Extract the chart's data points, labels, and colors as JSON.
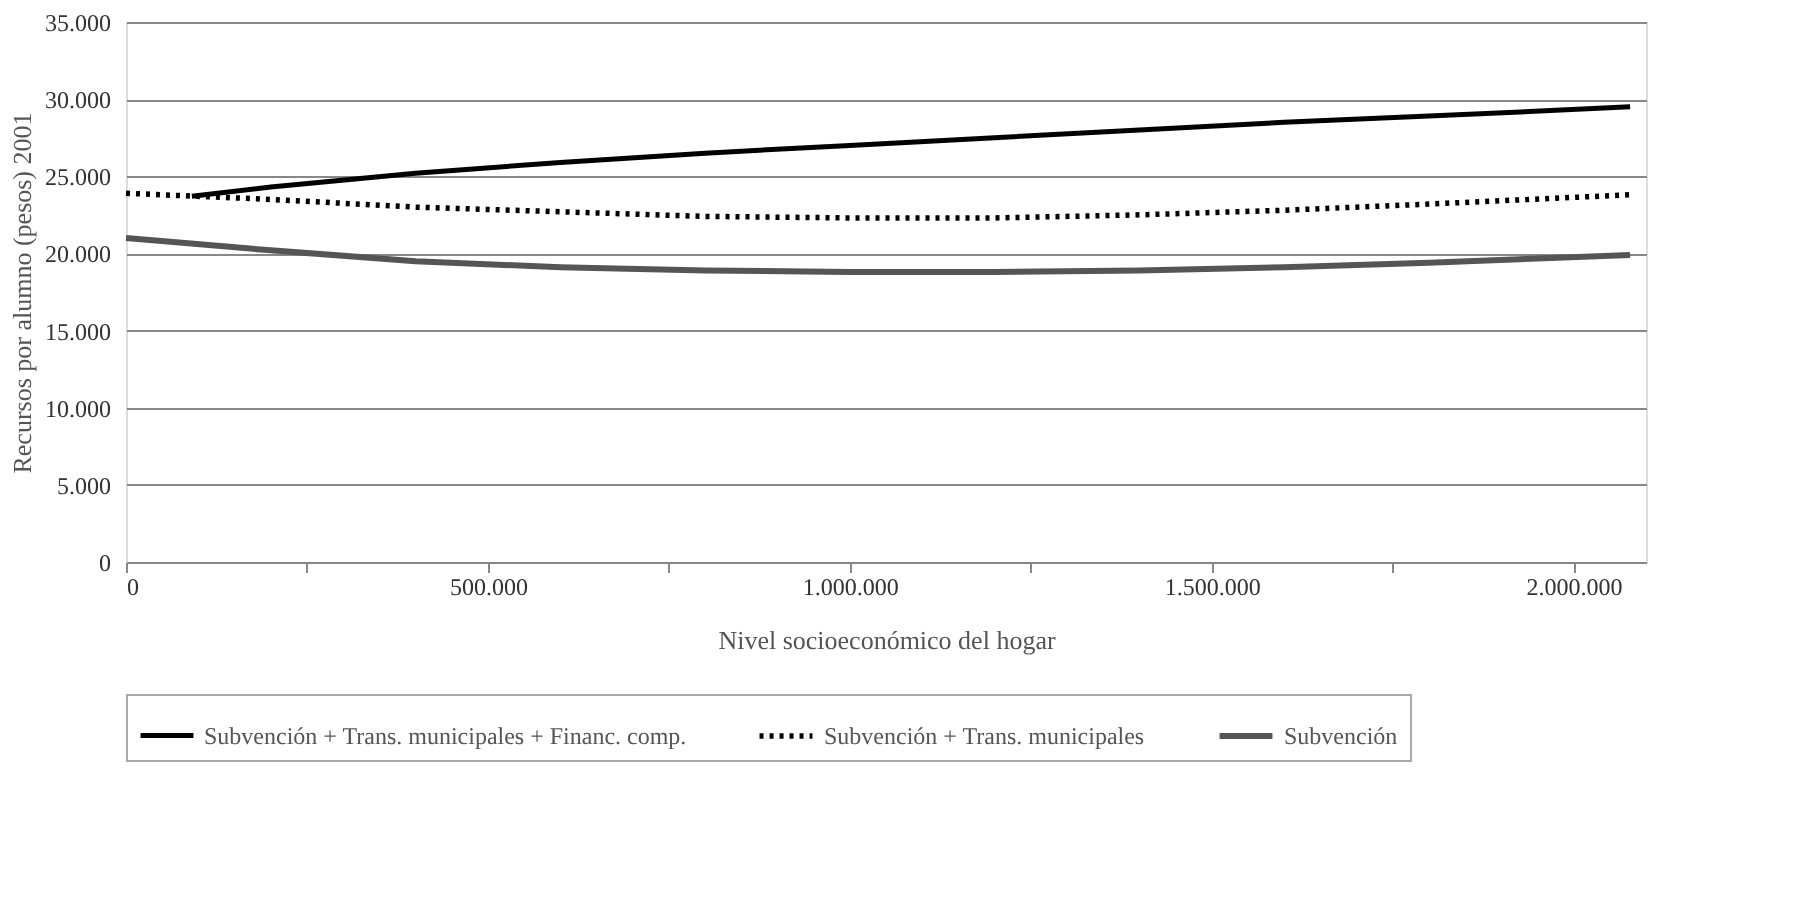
{
  "chart_data": {
    "type": "line",
    "xlabel": "Nivel socioeconómico del hogar",
    "ylabel": "Recursos por alumno (pesos) 2001",
    "xlim": [
      0,
      2100000
    ],
    "xticks": [
      0,
      {
        "value": 250000,
        "label": null
      },
      {
        "value": 500000,
        "label": "500.000"
      },
      {
        "value": 750000,
        "label": null
      },
      {
        "value": 1000000,
        "label": "1.000.000"
      },
      {
        "value": 1250000,
        "label": null
      },
      {
        "value": 1500000,
        "label": "1.500.000"
      },
      {
        "value": 1750000,
        "label": null
      },
      {
        "value": 2000000,
        "label": "2.000.000"
      }
    ],
    "ylim": [
      0,
      35000
    ],
    "yticks": [
      0,
      {
        "value": 5000,
        "label": "5.000"
      },
      {
        "value": 10000,
        "label": "10.000"
      },
      {
        "value": 15000,
        "label": "15.000"
      },
      {
        "value": 20000,
        "label": "20.000"
      },
      {
        "value": 25000,
        "label": "25.000"
      },
      {
        "value": 30000,
        "label": "30.000"
      },
      {
        "value": 35000,
        "label": "35.000"
      }
    ],
    "grid": "y",
    "legend": "bottom",
    "series": [
      {
        "name": "Subvención + Trans. municipales + Financ. comp.",
        "color": "#000000",
        "line_style": "solid",
        "x": [
          91000,
          200000,
          400000,
          600000,
          800000,
          1000000,
          1200000,
          1400000,
          1600000,
          1800000,
          2078000
        ],
        "values": [
          23700,
          24300,
          25200,
          25900,
          26500,
          27000,
          27500,
          28000,
          28500,
          28900,
          29500
        ]
      },
      {
        "name": "Subvención + Trans. municipales",
        "color": "#000000",
        "line_style": "dotted",
        "x": [
          0,
          200000,
          400000,
          600000,
          800000,
          1000000,
          1200000,
          1400000,
          1600000,
          1800000,
          2078000
        ],
        "values": [
          23900,
          23500,
          23000,
          22700,
          22400,
          22300,
          22300,
          22500,
          22800,
          23200,
          23800
        ]
      },
      {
        "name": "Subvención",
        "color": "#555555",
        "line_style": "solid",
        "x": [
          0,
          200000,
          400000,
          600000,
          800000,
          1000000,
          1200000,
          1400000,
          1600000,
          1800000,
          2078000
        ],
        "values": [
          21000,
          20200,
          19500,
          19100,
          18900,
          18800,
          18800,
          18900,
          19100,
          19400,
          19900
        ]
      }
    ]
  }
}
